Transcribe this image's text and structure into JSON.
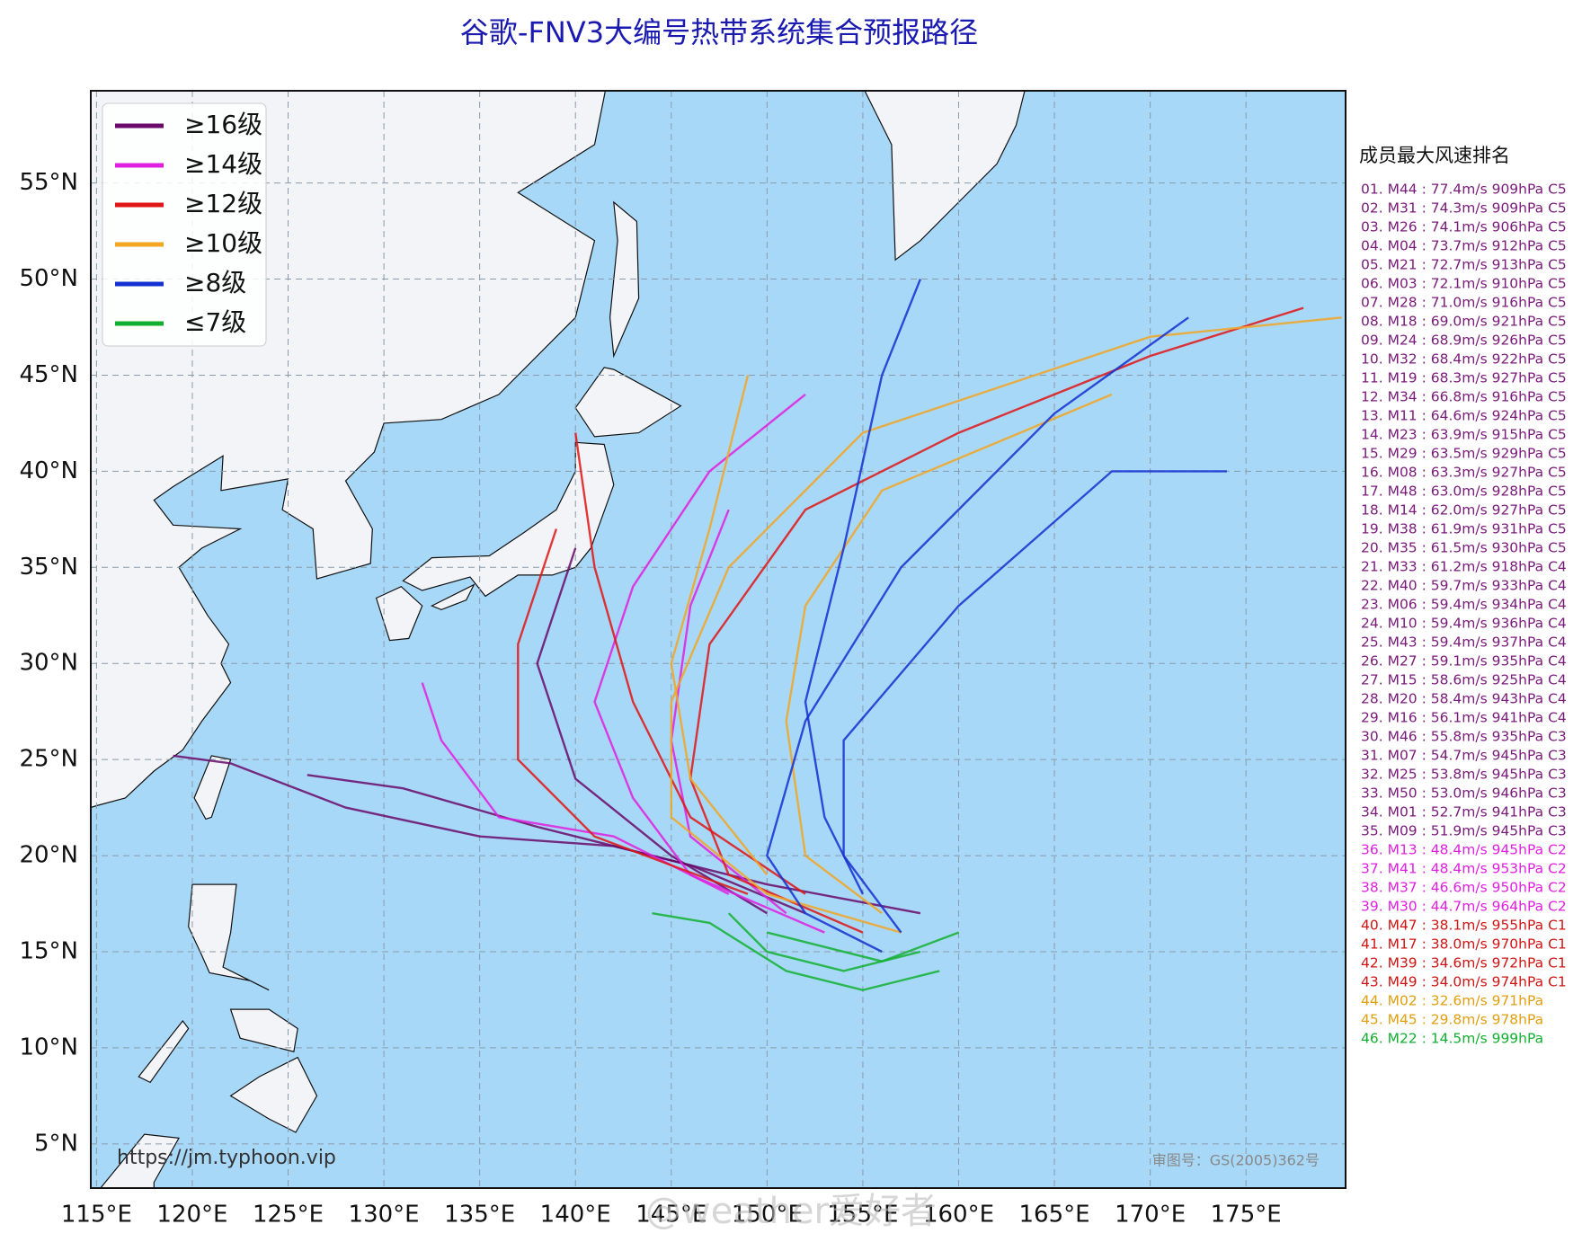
{
  "chart_data": {
    "type": "map",
    "title": "谷歌-FNV3大编号热带系统集合预报路径",
    "xlim": [
      114.7,
      180.2
    ],
    "ylim": [
      2.7,
      59.8
    ],
    "xticks": [
      {
        "value": 115,
        "label": "115°E"
      },
      {
        "value": 120,
        "label": "120°E"
      },
      {
        "value": 125,
        "label": "125°E"
      },
      {
        "value": 130,
        "label": "130°E"
      },
      {
        "value": 135,
        "label": "135°E"
      },
      {
        "value": 140,
        "label": "140°E"
      },
      {
        "value": 145,
        "label": "145°E"
      },
      {
        "value": 150,
        "label": "150°E"
      },
      {
        "value": 155,
        "label": "155°E"
      },
      {
        "value": 160,
        "label": "160°E"
      },
      {
        "value": 165,
        "label": "165°E"
      },
      {
        "value": 170,
        "label": "170°E"
      },
      {
        "value": 175,
        "label": "175°E"
      }
    ],
    "yticks": [
      {
        "value": 5,
        "label": "5°N"
      },
      {
        "value": 10,
        "label": "10°N"
      },
      {
        "value": 15,
        "label": "15°N"
      },
      {
        "value": 20,
        "label": "20°N"
      },
      {
        "value": 25,
        "label": "25°N"
      },
      {
        "value": 30,
        "label": "30°N"
      },
      {
        "value": 35,
        "label": "35°N"
      },
      {
        "value": 40,
        "label": "40°N"
      },
      {
        "value": 45,
        "label": "45°N"
      },
      {
        "value": 50,
        "label": "50°N"
      },
      {
        "value": 55,
        "label": "55°N"
      }
    ],
    "grid": true,
    "legend_position": "upper left",
    "legend": [
      {
        "name": "≥16级",
        "color": "#6a0a6a"
      },
      {
        "name": "≥14级",
        "color": "#e020e0"
      },
      {
        "name": "≥12级",
        "color": "#e01515"
      },
      {
        "name": "≥10级",
        "color": "#f2a623"
      },
      {
        "name": "≥8级",
        "color": "#1530d0"
      },
      {
        "name": "≤7级",
        "color": "#12b030"
      }
    ],
    "ranking_title": "成员最大风速排名",
    "ranking": [
      {
        "text": "01. M44 : 77.4m/s 909hPa C5",
        "color": "#7a1a7a"
      },
      {
        "text": "02. M31 : 74.3m/s 909hPa C5",
        "color": "#7a1a7a"
      },
      {
        "text": "03. M26 : 74.1m/s 906hPa C5",
        "color": "#7a1a7a"
      },
      {
        "text": "04. M04 : 73.7m/s 912hPa C5",
        "color": "#7a1a7a"
      },
      {
        "text": "05. M21 : 72.7m/s 913hPa C5",
        "color": "#7a1a7a"
      },
      {
        "text": "06. M03 : 72.1m/s 910hPa C5",
        "color": "#7a1a7a"
      },
      {
        "text": "07. M28 : 71.0m/s 916hPa C5",
        "color": "#7a1a7a"
      },
      {
        "text": "08. M18 : 69.0m/s 921hPa C5",
        "color": "#7a1a7a"
      },
      {
        "text": "09. M24 : 68.9m/s 926hPa C5",
        "color": "#7a1a7a"
      },
      {
        "text": "10. M32 : 68.4m/s 922hPa C5",
        "color": "#7a1a7a"
      },
      {
        "text": "11. M19 : 68.3m/s 927hPa C5",
        "color": "#7a1a7a"
      },
      {
        "text": "12. M34 : 66.8m/s 916hPa C5",
        "color": "#7a1a7a"
      },
      {
        "text": "13. M11 : 64.6m/s 924hPa C5",
        "color": "#7a1a7a"
      },
      {
        "text": "14. M23 : 63.9m/s 915hPa C5",
        "color": "#7a1a7a"
      },
      {
        "text": "15. M29 : 63.5m/s 929hPa C5",
        "color": "#7a1a7a"
      },
      {
        "text": "16. M08 : 63.3m/s 927hPa C5",
        "color": "#7a1a7a"
      },
      {
        "text": "17. M48 : 63.0m/s 928hPa C5",
        "color": "#7a1a7a"
      },
      {
        "text": "18. M14 : 62.0m/s 927hPa C5",
        "color": "#7a1a7a"
      },
      {
        "text": "19. M38 : 61.9m/s 931hPa C5",
        "color": "#7a1a7a"
      },
      {
        "text": "20. M35 : 61.5m/s 930hPa C5",
        "color": "#7a1a7a"
      },
      {
        "text": "21. M33 : 61.2m/s 918hPa C4",
        "color": "#7a1a7a"
      },
      {
        "text": "22. M40 : 59.7m/s 933hPa C4",
        "color": "#7a1a7a"
      },
      {
        "text": "23. M06 : 59.4m/s 934hPa C4",
        "color": "#7a1a7a"
      },
      {
        "text": "24. M10 : 59.4m/s 936hPa C4",
        "color": "#7a1a7a"
      },
      {
        "text": "25. M43 : 59.4m/s 937hPa C4",
        "color": "#7a1a7a"
      },
      {
        "text": "26. M27 : 59.1m/s 935hPa C4",
        "color": "#7a1a7a"
      },
      {
        "text": "27. M15 : 58.6m/s 925hPa C4",
        "color": "#7a1a7a"
      },
      {
        "text": "28. M20 : 58.4m/s 943hPa C4",
        "color": "#7a1a7a"
      },
      {
        "text": "29. M16 : 56.1m/s 941hPa C4",
        "color": "#7a1a7a"
      },
      {
        "text": "30. M46 : 55.8m/s 935hPa C3",
        "color": "#7a1a7a"
      },
      {
        "text": "31. M07 : 54.7m/s 945hPa C3",
        "color": "#7a1a7a"
      },
      {
        "text": "32. M25 : 53.8m/s 945hPa C3",
        "color": "#7a1a7a"
      },
      {
        "text": "33. M50 : 53.0m/s 946hPa C3",
        "color": "#7a1a7a"
      },
      {
        "text": "34. M01 : 52.7m/s 941hPa C3",
        "color": "#7a1a7a"
      },
      {
        "text": "35. M09 : 51.9m/s 945hPa C3",
        "color": "#7a1a7a"
      },
      {
        "text": "36. M13 : 48.4m/s 945hPa C2",
        "color": "#e020e0"
      },
      {
        "text": "37. M41 : 48.4m/s 953hPa C2",
        "color": "#e020e0"
      },
      {
        "text": "38. M37 : 46.6m/s 950hPa C2",
        "color": "#e020e0"
      },
      {
        "text": "39. M30 : 44.7m/s 964hPa C2",
        "color": "#e020e0"
      },
      {
        "text": "40. M47 : 38.1m/s 955hPa C1",
        "color": "#d01515"
      },
      {
        "text": "41. M17 : 38.0m/s 970hPa C1",
        "color": "#d01515"
      },
      {
        "text": "42. M39 : 34.6m/s 972hPa C1",
        "color": "#d01515"
      },
      {
        "text": "43. M49 : 34.0m/s 974hPa C1",
        "color": "#d01515"
      },
      {
        "text": "44. M02 : 32.6m/s 971hPa",
        "color": "#e0a010"
      },
      {
        "text": "45. M45 : 29.8m/s 978hPa",
        "color": "#e0a010"
      },
      {
        "text": "46. M22 : 14.5m/s 999hPa",
        "color": "#12b030"
      }
    ],
    "source_url": "https://jm.typhoon.vip",
    "approval": "审图号：GS(2005)362号",
    "watermark": "@weather爱好者"
  }
}
